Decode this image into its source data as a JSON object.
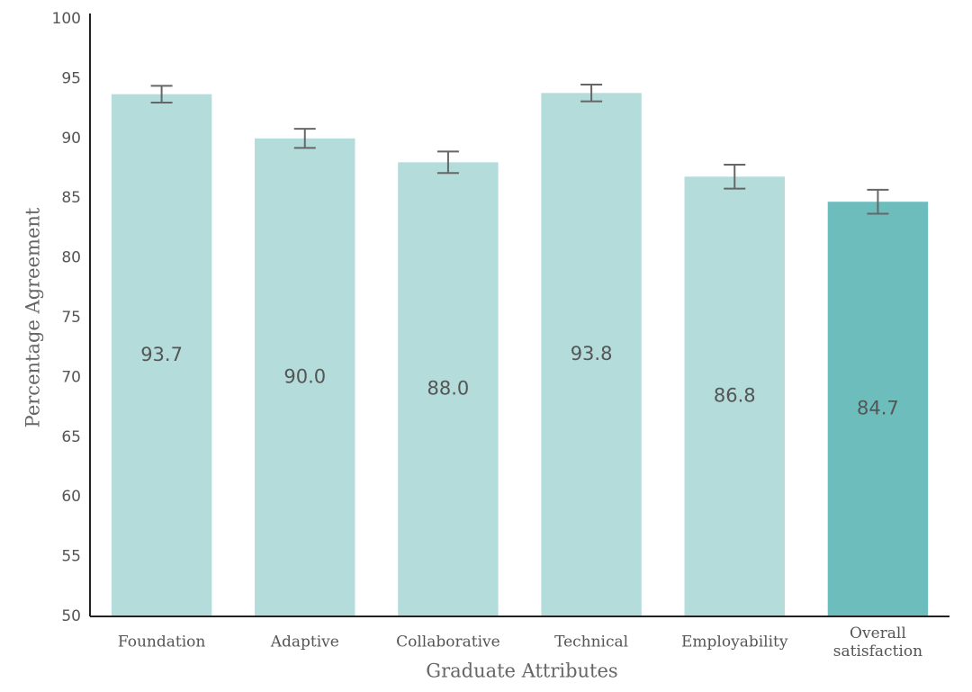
{
  "chart_data": {
    "type": "bar",
    "x_label": "Graduate Attributes",
    "y_label": "Percentage Agreement",
    "categories": [
      "Foundation",
      "Adaptive",
      "Collaborative",
      "Technical",
      "Employability",
      "Overall satisfaction"
    ],
    "values": [
      93.7,
      90.0,
      88.0,
      93.8,
      86.8,
      84.7
    ],
    "value_labels": [
      "93.7",
      "90.0",
      "88.0",
      "93.8",
      "86.8",
      "84.7"
    ],
    "errors": [
      0.7,
      0.8,
      0.9,
      0.7,
      1.0,
      1.0
    ],
    "colors": [
      "#b3dcdb",
      "#b3dcdb",
      "#b3dcdb",
      "#b3dcdb",
      "#b3dcdb",
      "#6dbdbd"
    ],
    "error_color": "#666666",
    "ylim": [
      50,
      100
    ],
    "yticks": [
      50,
      55,
      60,
      65,
      70,
      75,
      80,
      85,
      90,
      95,
      100
    ],
    "grid": false
  }
}
